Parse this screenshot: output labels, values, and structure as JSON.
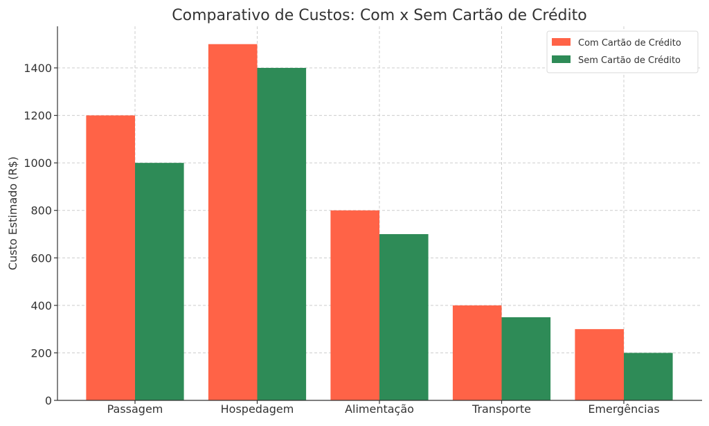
{
  "chart_data": {
    "type": "bar",
    "title": "Comparativo de Custos: Com x Sem Cartão de Crédito",
    "xlabel": "",
    "ylabel": "Custo Estimado (R$)",
    "categories": [
      "Passagem",
      "Hospedagem",
      "Alimentação",
      "Transporte",
      "Emergências"
    ],
    "series": [
      {
        "name": "Com Cartão de Crédito",
        "color": "#ff6347",
        "values": [
          1200,
          1500,
          800,
          400,
          300
        ]
      },
      {
        "name": "Sem Cartão de Crédito",
        "color": "#2e8b57",
        "values": [
          1000,
          1400,
          700,
          350,
          200
        ]
      }
    ],
    "ylim": [
      0,
      1575
    ],
    "yticks": [
      0,
      200,
      400,
      600,
      800,
      1000,
      1200,
      1400
    ],
    "grid": true,
    "legend_position": "top-right"
  }
}
